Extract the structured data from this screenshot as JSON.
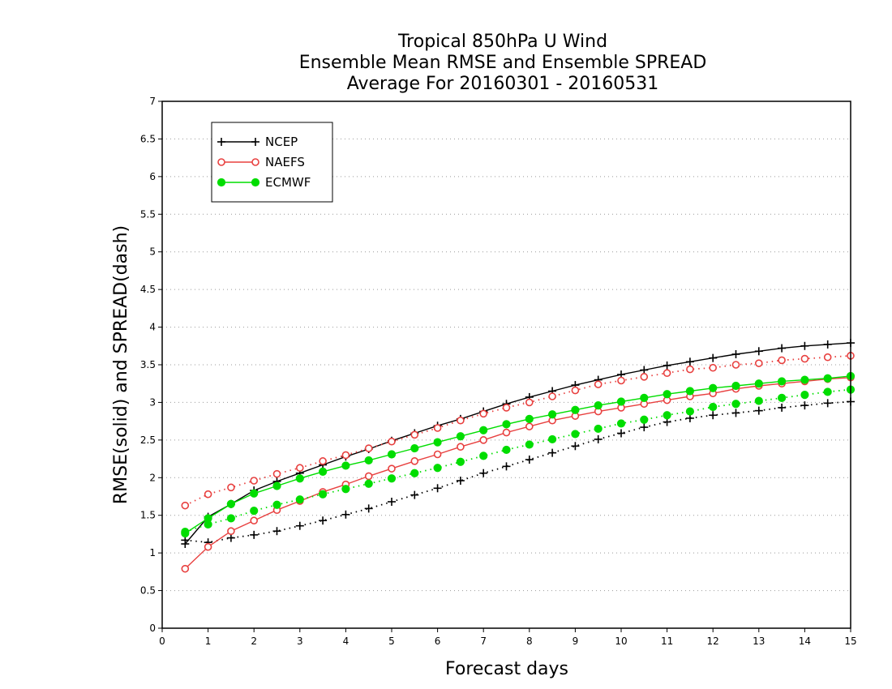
{
  "chart_data": {
    "type": "line",
    "title_lines": [
      "Tropical 850hPa U Wind",
      "Ensemble Mean RMSE and Ensemble SPREAD",
      "Average For 20160301 - 20160531"
    ],
    "xlabel": "Forecast days",
    "ylabel": "RMSE(solid) and SPREAD(dash)",
    "xlim": [
      0,
      15
    ],
    "ylim": [
      0,
      7
    ],
    "x_ticks": [
      0,
      1,
      2,
      3,
      4,
      5,
      6,
      7,
      8,
      9,
      10,
      11,
      12,
      13,
      14,
      15
    ],
    "y_ticks": [
      0,
      0.5,
      1,
      1.5,
      2,
      2.5,
      3,
      3.5,
      4,
      4.5,
      5,
      5.5,
      6,
      6.5,
      7
    ],
    "grid": "horizontal dotted",
    "legend_position": "top-left",
    "x": [
      0.5,
      1,
      1.5,
      2,
      2.5,
      3,
      3.5,
      4,
      4.5,
      5,
      5.5,
      6,
      6.5,
      7,
      7.5,
      8,
      8.5,
      9,
      9.5,
      10,
      10.5,
      11,
      11.5,
      12,
      12.5,
      13,
      13.5,
      14,
      14.5,
      15
    ],
    "series": [
      {
        "name": "NCEP",
        "color": "#000000",
        "marker": "plus",
        "rmse": [
          1.12,
          1.48,
          1.65,
          1.83,
          1.95,
          2.06,
          2.17,
          2.28,
          2.38,
          2.49,
          2.59,
          2.69,
          2.78,
          2.88,
          2.98,
          3.07,
          3.15,
          3.23,
          3.3,
          3.37,
          3.43,
          3.49,
          3.54,
          3.59,
          3.64,
          3.68,
          3.72,
          3.75,
          3.77,
          3.79
        ],
        "spread": [
          1.17,
          1.14,
          1.2,
          1.24,
          1.29,
          1.36,
          1.43,
          1.51,
          1.59,
          1.68,
          1.77,
          1.86,
          1.96,
          2.06,
          2.15,
          2.24,
          2.33,
          2.42,
          2.51,
          2.59,
          2.67,
          2.74,
          2.79,
          2.83,
          2.86,
          2.89,
          2.93,
          2.96,
          2.99,
          3.01
        ]
      },
      {
        "name": "NAEFS",
        "color": "#e8403f",
        "marker": "open-circle",
        "rmse": [
          0.79,
          1.08,
          1.29,
          1.43,
          1.57,
          1.69,
          1.81,
          1.91,
          2.02,
          2.12,
          2.22,
          2.31,
          2.41,
          2.5,
          2.6,
          2.68,
          2.76,
          2.82,
          2.88,
          2.93,
          2.98,
          3.03,
          3.08,
          3.12,
          3.18,
          3.22,
          3.25,
          3.28,
          3.31,
          3.33
        ],
        "spread": [
          1.63,
          1.78,
          1.87,
          1.96,
          2.05,
          2.13,
          2.22,
          2.3,
          2.39,
          2.48,
          2.57,
          2.66,
          2.76,
          2.85,
          2.93,
          3.0,
          3.08,
          3.16,
          3.24,
          3.29,
          3.34,
          3.39,
          3.44,
          3.46,
          3.5,
          3.52,
          3.56,
          3.58,
          3.6,
          3.62
        ]
      },
      {
        "name": "ECMWF",
        "color": "#00dd00",
        "marker": "filled-circle",
        "rmse": [
          1.26,
          1.46,
          1.65,
          1.79,
          1.89,
          1.99,
          2.08,
          2.16,
          2.23,
          2.31,
          2.39,
          2.47,
          2.55,
          2.63,
          2.71,
          2.78,
          2.84,
          2.9,
          2.96,
          3.01,
          3.06,
          3.11,
          3.15,
          3.19,
          3.22,
          3.25,
          3.28,
          3.3,
          3.32,
          3.35
        ],
        "spread": [
          1.28,
          1.38,
          1.46,
          1.56,
          1.64,
          1.71,
          1.78,
          1.85,
          1.92,
          1.99,
          2.06,
          2.13,
          2.21,
          2.29,
          2.37,
          2.44,
          2.51,
          2.58,
          2.65,
          2.72,
          2.77,
          2.83,
          2.88,
          2.94,
          2.98,
          3.02,
          3.06,
          3.1,
          3.14,
          3.17
        ]
      }
    ]
  }
}
